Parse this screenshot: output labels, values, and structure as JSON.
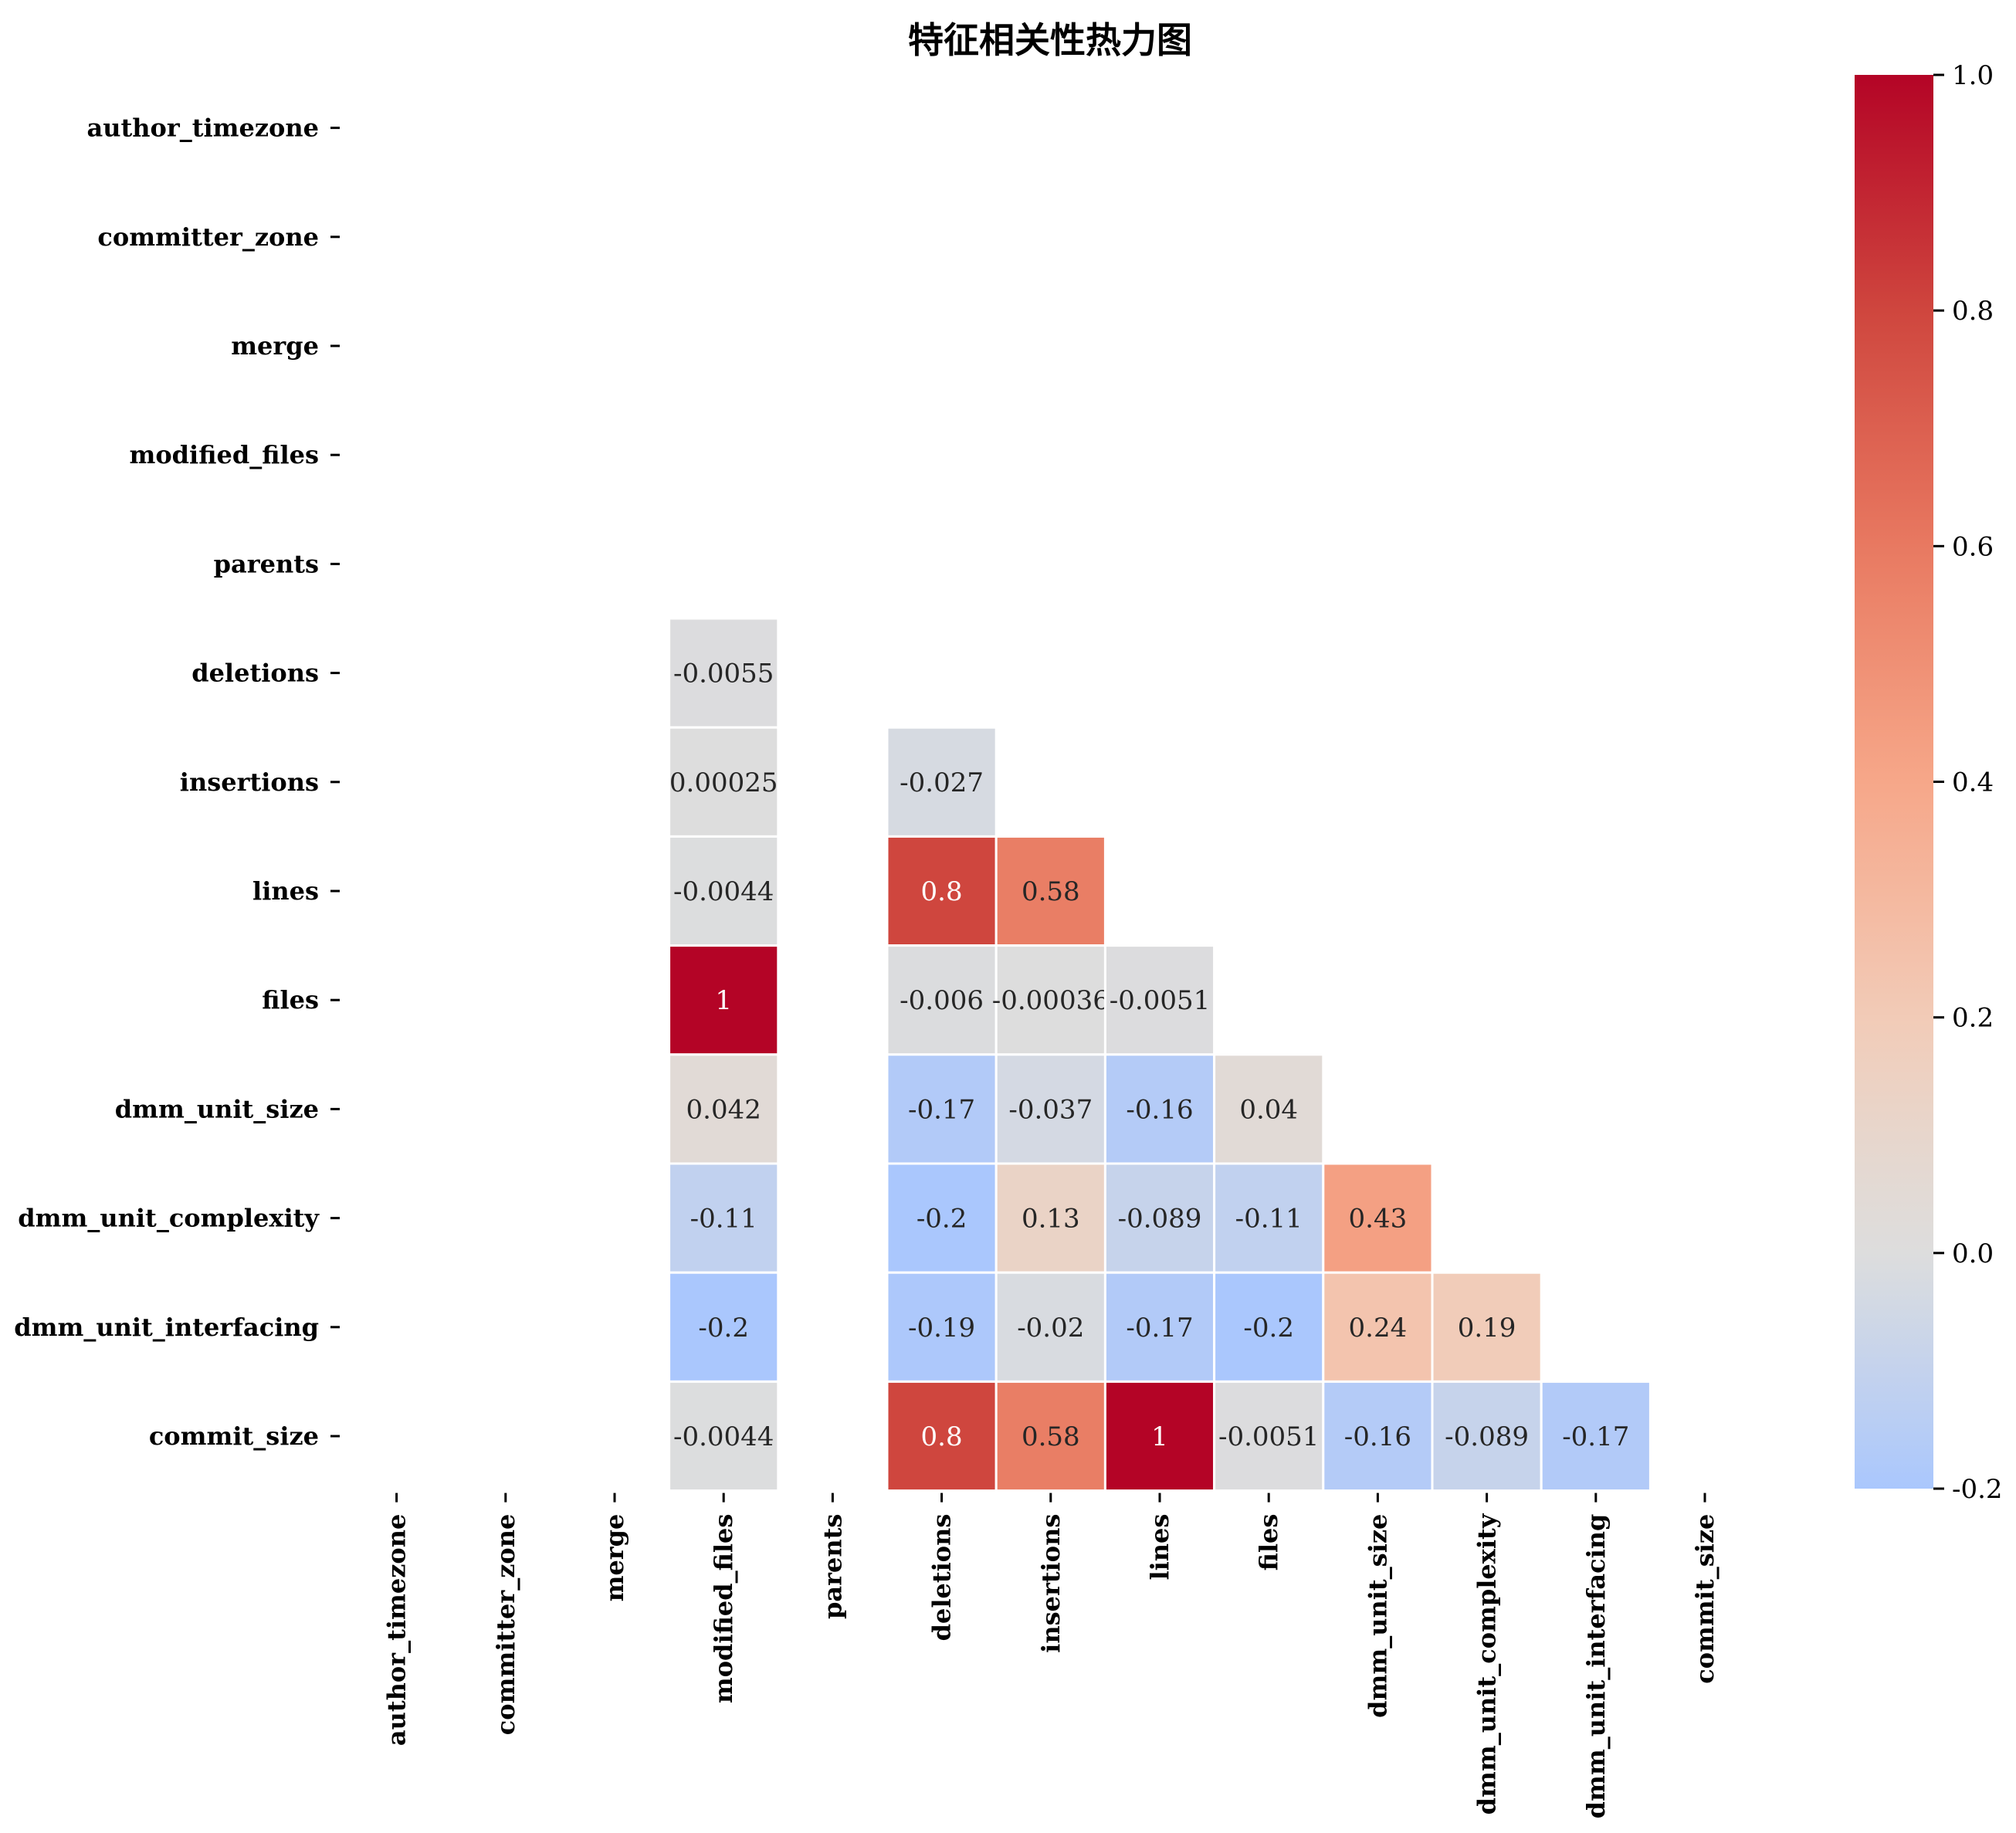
{
  "chart_data": {
    "type": "heatmap",
    "title": "特征相关性热力图",
    "xlabel": "",
    "ylabel": "",
    "rows": [
      "author_timezone",
      "committer_zone",
      "merge",
      "modified_files",
      "parents",
      "deletions",
      "insertions",
      "lines",
      "files",
      "dmm_unit_size",
      "dmm_unit_complexity",
      "dmm_unit_interfacing",
      "commit_size"
    ],
    "columns": [
      "author_timezone",
      "committer_zone",
      "merge",
      "modified_files",
      "parents",
      "deletions",
      "insertions",
      "lines",
      "files",
      "dmm_unit_size",
      "dmm_unit_complexity",
      "dmm_unit_interfacing",
      "commit_size"
    ],
    "cells": [
      {
        "row": 5,
        "col": 3,
        "value": -0.0055,
        "label": "-0.0055"
      },
      {
        "row": 6,
        "col": 3,
        "value": 0.00025,
        "label": "0.00025"
      },
      {
        "row": 6,
        "col": 5,
        "value": -0.027,
        "label": "-0.027"
      },
      {
        "row": 7,
        "col": 3,
        "value": -0.0044,
        "label": "-0.0044"
      },
      {
        "row": 7,
        "col": 5,
        "value": 0.8,
        "label": "0.8"
      },
      {
        "row": 7,
        "col": 6,
        "value": 0.58,
        "label": "0.58"
      },
      {
        "row": 8,
        "col": 3,
        "value": 1,
        "label": "1"
      },
      {
        "row": 8,
        "col": 5,
        "value": -0.006,
        "label": "-0.006"
      },
      {
        "row": 8,
        "col": 6,
        "value": -0.00036,
        "label": "-0.00036"
      },
      {
        "row": 8,
        "col": 7,
        "value": -0.0051,
        "label": "-0.0051"
      },
      {
        "row": 9,
        "col": 3,
        "value": 0.042,
        "label": "0.042"
      },
      {
        "row": 9,
        "col": 5,
        "value": -0.17,
        "label": "-0.17"
      },
      {
        "row": 9,
        "col": 6,
        "value": -0.037,
        "label": "-0.037"
      },
      {
        "row": 9,
        "col": 7,
        "value": -0.16,
        "label": "-0.16"
      },
      {
        "row": 9,
        "col": 8,
        "value": 0.04,
        "label": "0.04"
      },
      {
        "row": 10,
        "col": 3,
        "value": -0.11,
        "label": "-0.11"
      },
      {
        "row": 10,
        "col": 5,
        "value": -0.2,
        "label": "-0.2"
      },
      {
        "row": 10,
        "col": 6,
        "value": 0.13,
        "label": "0.13"
      },
      {
        "row": 10,
        "col": 7,
        "value": -0.089,
        "label": "-0.089"
      },
      {
        "row": 10,
        "col": 8,
        "value": -0.11,
        "label": "-0.11"
      },
      {
        "row": 10,
        "col": 9,
        "value": 0.43,
        "label": "0.43"
      },
      {
        "row": 11,
        "col": 3,
        "value": -0.2,
        "label": "-0.2"
      },
      {
        "row": 11,
        "col": 5,
        "value": -0.19,
        "label": "-0.19"
      },
      {
        "row": 11,
        "col": 6,
        "value": -0.02,
        "label": "-0.02"
      },
      {
        "row": 11,
        "col": 7,
        "value": -0.17,
        "label": "-0.17"
      },
      {
        "row": 11,
        "col": 8,
        "value": -0.2,
        "label": "-0.2"
      },
      {
        "row": 11,
        "col": 9,
        "value": 0.24,
        "label": "0.24"
      },
      {
        "row": 11,
        "col": 10,
        "value": 0.19,
        "label": "0.19"
      },
      {
        "row": 12,
        "col": 3,
        "value": -0.0044,
        "label": "-0.0044"
      },
      {
        "row": 12,
        "col": 5,
        "value": 0.8,
        "label": "0.8"
      },
      {
        "row": 12,
        "col": 6,
        "value": 0.58,
        "label": "0.58"
      },
      {
        "row": 12,
        "col": 7,
        "value": 1,
        "label": "1"
      },
      {
        "row": 12,
        "col": 8,
        "value": -0.0051,
        "label": "-0.0051"
      },
      {
        "row": 12,
        "col": 9,
        "value": -0.16,
        "label": "-0.16"
      },
      {
        "row": 12,
        "col": 10,
        "value": -0.089,
        "label": "-0.089"
      },
      {
        "row": 12,
        "col": 11,
        "value": -0.17,
        "label": "-0.17"
      }
    ],
    "colorbar": {
      "range": [
        -0.2,
        1.0
      ],
      "ticks": [
        {
          "value": 1.0,
          "label": "1.0"
        },
        {
          "value": 0.8,
          "label": "0.8"
        },
        {
          "value": 0.6,
          "label": "0.6"
        },
        {
          "value": 0.4,
          "label": "0.4"
        },
        {
          "value": 0.2,
          "label": "0.2"
        },
        {
          "value": 0.0,
          "label": "0.0"
        },
        {
          "value": -0.2,
          "label": "-0.2"
        }
      ]
    },
    "colormap": "coolwarm",
    "center": 0,
    "grid": false,
    "legend": "colorbar-right"
  }
}
